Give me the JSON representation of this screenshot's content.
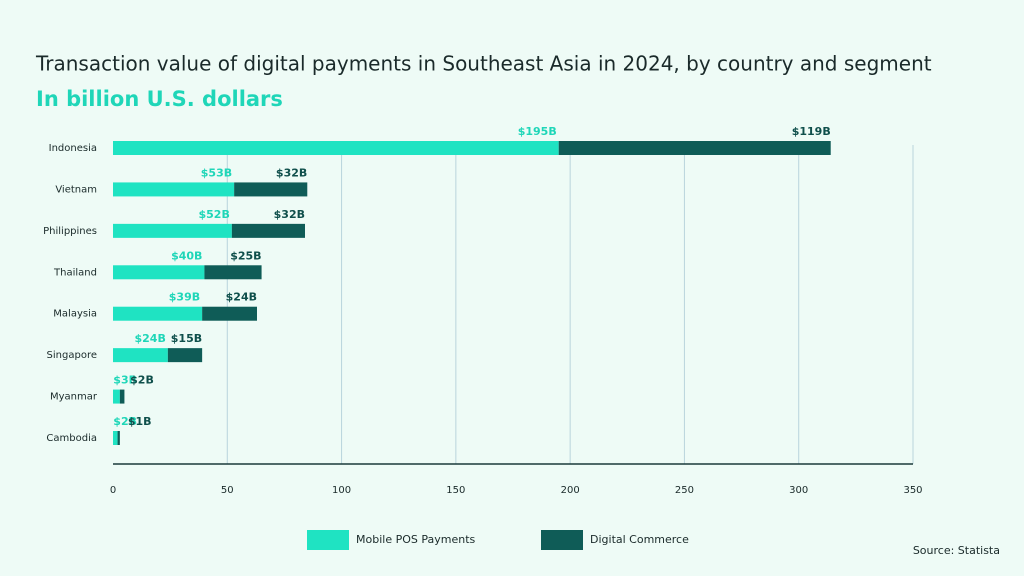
{
  "chart_data": {
    "type": "stacked-bar-horizontal",
    "title": "Transaction value of digital payments in Southeast Asia in 2024, by country and segment",
    "subtitle": "In billion U.S. dollars",
    "categories": [
      "Indonesia",
      "Vietnam",
      "Philippines",
      "Thailand",
      "Malaysia",
      "Singapore",
      "Myanmar",
      "Cambodia"
    ],
    "series": [
      {
        "name": "Mobile POS Payments",
        "color": "#1fe3c2",
        "label_color": "#1fd6b8",
        "values": [
          195,
          53,
          52,
          40,
          39,
          24,
          3,
          2
        ],
        "value_labels": [
          "$195B",
          "$53B",
          "$52B",
          "$40B",
          "$39B",
          "$24B",
          "$3B",
          "$2B"
        ]
      },
      {
        "name": "Digital Commerce",
        "color": "#0f5c57",
        "label_color": "#0f4f4b",
        "values": [
          119,
          32,
          32,
          25,
          24,
          15,
          2,
          1
        ],
        "value_labels": [
          "$119B",
          "$32B",
          "$32B",
          "$25B",
          "$24B",
          "$15B",
          "$2B",
          "$1B"
        ]
      }
    ],
    "xlim": [
      0,
      350
    ],
    "xticks": [
      0,
      50,
      100,
      150,
      200,
      250,
      300,
      350
    ],
    "grid": true,
    "legend": "bottom",
    "source": "Source: Statista"
  }
}
